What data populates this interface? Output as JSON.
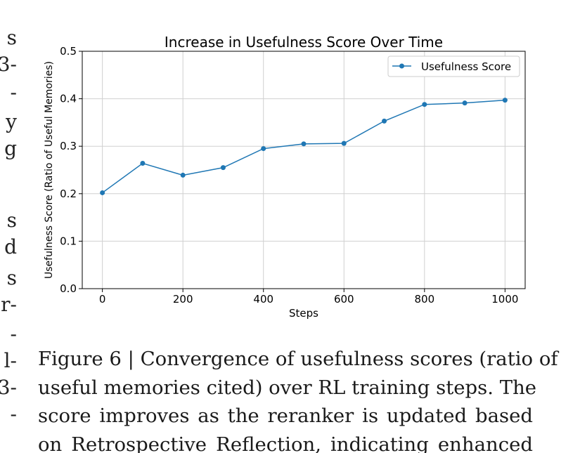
{
  "left_column_fragments": [
    "s",
    "3-",
    "-",
    "y",
    "g",
    "s",
    "d",
    "s",
    "r-",
    "-",
    "l-",
    "3-",
    "-"
  ],
  "chart_data": {
    "type": "line",
    "title": "Increase in Usefulness Score Over Time",
    "xlabel": "Steps",
    "ylabel": "Usefulness Score (Ratio of Useful Memories)",
    "x": [
      0,
      100,
      200,
      300,
      400,
      500,
      600,
      700,
      800,
      900,
      1000
    ],
    "series": [
      {
        "name": "Usefulness Score",
        "values": [
          0.202,
          0.264,
          0.239,
          0.255,
          0.295,
          0.305,
          0.306,
          0.353,
          0.388,
          0.391,
          0.397
        ],
        "color": "#1f77b4"
      }
    ],
    "xlim": [
      -50,
      1050
    ],
    "ylim": [
      0.0,
      0.5
    ],
    "xticks": [
      "0",
      "200",
      "400",
      "600",
      "800",
      "1000"
    ],
    "yticks": [
      "0.0",
      "0.1",
      "0.2",
      "0.3",
      "0.4",
      "0.5"
    ],
    "grid": true,
    "legend": "top-right"
  },
  "caption": {
    "lines": [
      "Figure 6 | Convergence of usefulness scores (ratio of",
      "useful memories cited) over RL training steps. The",
      "score improves as the reranker is updated based",
      "on Retrospective Reflection, indicating enhanced"
    ]
  }
}
